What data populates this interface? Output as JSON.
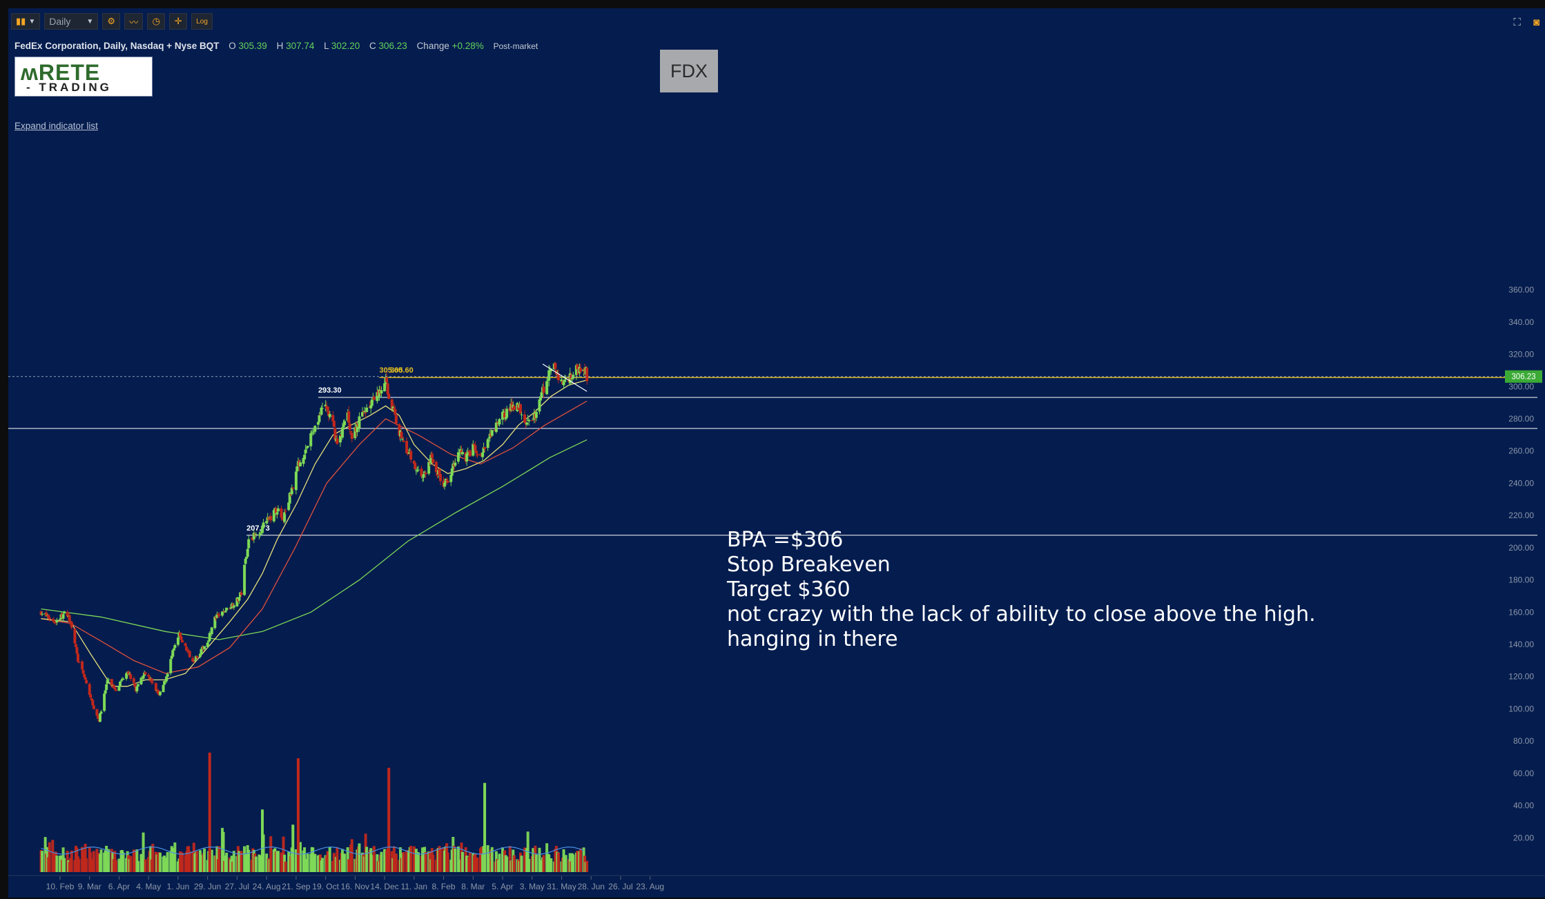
{
  "toolbar": {
    "chart_style_icon": "candles-icon",
    "interval": "Daily",
    "tools": [
      "gear-icon",
      "indicator-icon",
      "clock-icon",
      "crosshair-icon",
      "log-icon"
    ],
    "log_label": "Log"
  },
  "window_icons": [
    "fullscreen-icon",
    "camera-icon"
  ],
  "header": {
    "title": "FedEx Corporation, Daily, Nasdaq + Nyse BQT",
    "open_label": "O",
    "open": "305.39",
    "high_label": "H",
    "high": "307.74",
    "low_label": "L",
    "low": "302.20",
    "close_label": "C",
    "close": "306.23",
    "change_label": "Change",
    "change": "+0.28%",
    "session": "Post-market"
  },
  "logo": {
    "top": "RETE",
    "bottom": "TRADING"
  },
  "expand_indicator_label": "Expand indicator list",
  "symbol_box": "FDX",
  "note_lines": [
    "BPA =$306",
    "Stop Breakeven",
    "Target $360",
    "not crazy with the lack of ability to close above the high.",
    "hanging in there"
  ],
  "colors": {
    "background": "#041c4e",
    "up": "#7ed957",
    "down": "#c0281c",
    "ma_fast": "#e8e07a",
    "ma_mid": "#e0503c",
    "ma_slow": "#7ed957",
    "volume_avg": "#4a90e2",
    "level_line": "#ffffff",
    "price_tag": "#3aaa35",
    "high_line": "#e8c020"
  },
  "chart_data": {
    "type": "candlestick",
    "y_axis": {
      "ticks": [
        20,
        40,
        60,
        80,
        100,
        120,
        140,
        160,
        180,
        200,
        220,
        240,
        260,
        280,
        300,
        320,
        340,
        360
      ]
    },
    "x_axis": {
      "ticks": [
        "10. Feb",
        "9. Mar",
        "6. Apr",
        "4. May",
        "1. Jun",
        "29. Jun",
        "27. Jul",
        "24. Aug",
        "21. Sep",
        "19. Oct",
        "16. Nov",
        "14. Dec",
        "11. Jan",
        "8. Feb",
        "8. Mar",
        "5. Apr",
        "3. May",
        "31. May",
        "28. Jun",
        "26. Jul",
        "23. Aug"
      ]
    },
    "last_price": 306.23,
    "horizontal_levels": [
      {
        "label": "207.73",
        "value": 207.73
      },
      {
        "label": "293.30",
        "value": 293.3
      },
      {
        "label": "",
        "value": 274
      },
      {
        "label": "305.60",
        "value": 305.6,
        "highlight": true
      }
    ],
    "high_labels": [
      "305.60",
      "305.60"
    ],
    "price_path": [
      [
        "2020-01-23",
        160
      ],
      [
        "2020-02-05",
        154
      ],
      [
        "2020-02-14",
        159
      ],
      [
        "2020-02-20",
        155
      ],
      [
        "2020-02-27",
        130
      ],
      [
        "2020-03-05",
        118
      ],
      [
        "2020-03-12",
        102
      ],
      [
        "2020-03-18",
        93
      ],
      [
        "2020-03-26",
        118
      ],
      [
        "2020-04-03",
        112
      ],
      [
        "2020-04-14",
        124
      ],
      [
        "2020-04-22",
        112
      ],
      [
        "2020-04-30",
        123
      ],
      [
        "2020-05-08",
        116
      ],
      [
        "2020-05-14",
        108
      ],
      [
        "2020-05-20",
        118
      ],
      [
        "2020-05-27",
        135
      ],
      [
        "2020-06-02",
        146
      ],
      [
        "2020-06-08",
        138
      ],
      [
        "2020-06-15",
        130
      ],
      [
        "2020-06-23",
        136
      ],
      [
        "2020-06-29",
        142
      ],
      [
        "2020-07-06",
        156
      ],
      [
        "2020-07-14",
        160
      ],
      [
        "2020-07-21",
        164
      ],
      [
        "2020-07-28",
        168
      ],
      [
        "2020-07-31",
        172
      ],
      [
        "2020-08-03",
        188
      ],
      [
        "2020-08-07",
        205
      ],
      [
        "2020-08-14",
        208
      ],
      [
        "2020-08-24",
        216
      ],
      [
        "2020-09-03",
        224
      ],
      [
        "2020-09-08",
        216
      ],
      [
        "2020-09-16",
        234
      ],
      [
        "2020-09-22",
        250
      ],
      [
        "2020-10-01",
        262
      ],
      [
        "2020-10-08",
        274
      ],
      [
        "2020-10-13",
        282
      ],
      [
        "2020-10-19",
        288
      ],
      [
        "2020-10-26",
        276
      ],
      [
        "2020-10-30",
        264
      ],
      [
        "2020-11-09",
        283
      ],
      [
        "2020-11-13",
        268
      ],
      [
        "2020-11-19",
        278
      ],
      [
        "2020-11-26",
        286
      ],
      [
        "2020-12-03",
        290
      ],
      [
        "2020-12-10",
        298
      ],
      [
        "2020-12-15",
        305
      ],
      [
        "2020-12-18",
        293
      ],
      [
        "2020-12-23",
        284
      ],
      [
        "2020-12-28",
        272
      ],
      [
        "2021-01-05",
        260
      ],
      [
        "2021-01-12",
        250
      ],
      [
        "2021-01-20",
        244
      ],
      [
        "2021-01-27",
        256
      ],
      [
        "2021-02-03",
        246
      ],
      [
        "2021-02-08",
        238
      ],
      [
        "2021-02-16",
        248
      ],
      [
        "2021-02-22",
        262
      ],
      [
        "2021-03-01",
        256
      ],
      [
        "2021-03-08",
        262
      ],
      [
        "2021-03-15",
        256
      ],
      [
        "2021-03-22",
        266
      ],
      [
        "2021-03-29",
        274
      ],
      [
        "2021-04-05",
        282
      ],
      [
        "2021-04-12",
        286
      ],
      [
        "2021-04-19",
        290
      ],
      [
        "2021-04-26",
        280
      ],
      [
        "2021-05-03",
        278
      ],
      [
        "2021-05-10",
        290
      ],
      [
        "2021-05-17",
        305
      ],
      [
        "2021-05-24",
        312
      ],
      [
        "2021-05-31",
        302
      ],
      [
        "2021-06-07",
        306
      ],
      [
        "2021-06-14",
        310
      ],
      [
        "2021-06-21",
        314
      ],
      [
        "2021-06-24",
        306
      ]
    ],
    "ma_fast": [
      [
        "2020-01-23",
        156
      ],
      [
        "2020-02-20",
        154
      ],
      [
        "2020-03-10",
        134
      ],
      [
        "2020-03-30",
        114
      ],
      [
        "2020-04-14",
        114
      ],
      [
        "2020-05-01",
        118
      ],
      [
        "2020-05-19",
        118
      ],
      [
        "2020-06-08",
        122
      ],
      [
        "2020-06-29",
        138
      ],
      [
        "2020-07-20",
        154
      ],
      [
        "2020-08-06",
        168
      ],
      [
        "2020-08-20",
        184
      ],
      [
        "2020-09-03",
        205
      ],
      [
        "2020-09-22",
        228
      ],
      [
        "2020-10-09",
        252
      ],
      [
        "2020-10-26",
        270
      ],
      [
        "2020-11-12",
        276
      ],
      [
        "2020-11-30",
        282
      ],
      [
        "2020-12-15",
        288
      ],
      [
        "2020-12-28",
        282
      ],
      [
        "2021-01-11",
        264
      ],
      [
        "2021-01-28",
        252
      ],
      [
        "2021-02-12",
        246
      ],
      [
        "2021-03-01",
        249
      ],
      [
        "2021-03-18",
        254
      ],
      [
        "2021-04-05",
        264
      ],
      [
        "2021-04-20",
        276
      ],
      [
        "2021-05-05",
        284
      ],
      [
        "2021-05-21",
        294
      ],
      [
        "2021-06-07",
        301
      ],
      [
        "2021-06-24",
        304
      ]
    ],
    "ma_mid": [
      [
        "2020-01-23",
        156
      ],
      [
        "2020-02-20",
        153
      ],
      [
        "2020-03-20",
        142
      ],
      [
        "2020-04-20",
        130
      ],
      [
        "2020-05-20",
        122
      ],
      [
        "2020-06-20",
        126
      ],
      [
        "2020-07-20",
        138
      ],
      [
        "2020-08-20",
        162
      ],
      [
        "2020-09-20",
        200
      ],
      [
        "2020-10-20",
        240
      ],
      [
        "2020-11-20",
        264
      ],
      [
        "2020-12-15",
        280
      ],
      [
        "2021-01-15",
        270
      ],
      [
        "2021-02-15",
        258
      ],
      [
        "2021-03-15",
        252
      ],
      [
        "2021-04-15",
        262
      ],
      [
        "2021-05-15",
        276
      ],
      [
        "2021-06-24",
        291
      ]
    ],
    "ma_slow": [
      [
        "2020-01-23",
        162
      ],
      [
        "2020-03-20",
        157
      ],
      [
        "2020-05-20",
        148
      ],
      [
        "2020-07-10",
        143
      ],
      [
        "2020-08-20",
        148
      ],
      [
        "2020-10-05",
        160
      ],
      [
        "2020-11-20",
        180
      ],
      [
        "2021-01-05",
        204
      ],
      [
        "2021-02-20",
        222
      ],
      [
        "2021-04-05",
        238
      ],
      [
        "2021-05-20",
        256
      ],
      [
        "2021-06-24",
        267
      ]
    ],
    "trendline": [
      [
        "2021-05-13",
        314
      ],
      [
        "2021-06-24",
        297
      ]
    ],
    "volume_spikes_m": [
      [
        "2020-07-01",
        78
      ],
      [
        "2020-09-23",
        75
      ],
      [
        "2020-12-18",
        70
      ],
      [
        "2021-03-19",
        62
      ],
      [
        "2020-08-20",
        48
      ],
      [
        "2020-09-18",
        40
      ]
    ]
  }
}
